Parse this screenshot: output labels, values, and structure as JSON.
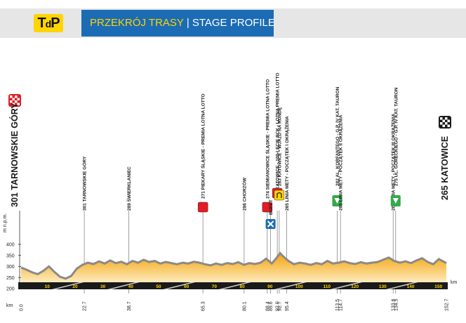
{
  "header": {
    "logo": {
      "t": "T",
      "d": "d",
      "p": "P"
    },
    "title_pl": "PRZEKRÓJ TRASY",
    "title_sep": "|",
    "title_en": "STAGE PROFILE"
  },
  "chart_data": {
    "type": "area",
    "title": "PRZEKRÓJ TRASY | STAGE PROFILE",
    "xlabel": "km",
    "ylabel": "m n.p.m.",
    "xlim": [
      0,
      155
    ],
    "ylim": [
      200,
      400
    ],
    "yticks": [
      200,
      250,
      300,
      350,
      400
    ],
    "grid": false,
    "x": [
      0,
      2,
      4,
      6,
      8,
      10,
      12,
      14,
      16,
      18,
      20,
      22,
      24,
      26,
      28,
      30,
      32,
      34,
      36,
      38,
      40,
      42,
      44,
      46,
      48,
      50,
      52,
      54,
      56,
      58,
      60,
      62,
      64,
      66,
      68,
      70,
      72,
      74,
      76,
      78,
      80,
      82,
      84,
      86,
      88,
      90,
      91,
      92,
      93,
      94,
      96,
      98,
      100,
      102,
      104,
      106,
      108,
      110,
      112,
      114,
      116,
      118,
      120,
      122,
      124,
      126,
      128,
      130,
      132,
      134,
      136,
      138,
      140,
      142,
      144,
      146,
      148,
      150,
      152.7
    ],
    "y": [
      300,
      290,
      278,
      270,
      285,
      305,
      280,
      258,
      250,
      262,
      295,
      312,
      322,
      316,
      328,
      318,
      332,
      320,
      326,
      315,
      330,
      322,
      335,
      325,
      330,
      318,
      325,
      320,
      315,
      322,
      318,
      326,
      322,
      315,
      310,
      318,
      312,
      320,
      316,
      324,
      312,
      320,
      316,
      322,
      340,
      318,
      332,
      348,
      365,
      352,
      330,
      315,
      322,
      318,
      312,
      320,
      315,
      330,
      318,
      322,
      328,
      320,
      316,
      324,
      318,
      322,
      325,
      335,
      345,
      330,
      322,
      328,
      320,
      332,
      342,
      325,
      315,
      338,
      320
    ],
    "waypoints": [
      {
        "km": "0.0",
        "label": "301 TARNOWSKIE GÓRY",
        "icon": "start-flag"
      },
      {
        "km": "22.7",
        "label": "301 TARNOWSKIE GÓRY",
        "icon": ""
      },
      {
        "km": "38.7",
        "label": "289 ŚWIERKLANIEC",
        "icon": ""
      },
      {
        "km": "65.3",
        "label": "271 PIEKARY ŚLĄSKIE - PREMIA LOTNA LOTTO",
        "icon": "sprint"
      },
      {
        "km": "80.1",
        "label": "286 CHORZÓW",
        "icon": ""
      },
      {
        "km": "88.4",
        "label": "274 SIEMIANOWICE ŚLĄSKIE - PREMIA LOTNA LOTTO",
        "icon": "sprint"
      },
      {
        "km": "89.6",
        "label": "BUFET",
        "icon": "feed"
      },
      {
        "km": "92.0",
        "label": "283 KATOWICE - 100-LECIE PCK - LOTNA PREMIA LOTTO",
        "icon": "sprint"
      },
      {
        "km": "92.7",
        "label": "283 KATOWICE - WJAZD NA RUNDĘ",
        "icon": "circuit"
      },
      {
        "km": "95.4",
        "label": "265 LINIA METY - POCZĄTEK I OKRĄŻENIA",
        "icon": ""
      },
      {
        "km": "113.5",
        "label": "282 AL. KORFANTEGO - G.P. IV KAT. TAURON",
        "icon": "kom"
      },
      {
        "km": "114.7",
        "label": "265 LINIA METY - POCZĄTEK II OKRĄŻENIA",
        "icon": ""
      },
      {
        "km": "133.6",
        "label": "265 LINIA METY - POCZĄTEK III OKRĄŻENIA",
        "icon": ""
      },
      {
        "km": "134.5",
        "label": "275 UL. GÓRECKIEGO - G.P. IV KAT. TAURON",
        "icon": "kom"
      },
      {
        "km": "152.7",
        "label": "265 KATOWICE",
        "icon": "finish-flag"
      }
    ],
    "strip_ticks": [
      "10",
      "20",
      "30",
      "40",
      "50",
      "60",
      "70",
      "80",
      "90",
      "100",
      "110",
      "120",
      "130",
      "140",
      "150"
    ],
    "km_unit": "km"
  },
  "colors": {
    "header_blue": "#1b6cb4",
    "title_yellow": "#ffd400",
    "fill_top": "#f4a000",
    "fill_bottom": "#fffbe6",
    "sprint_red": "#e31b23",
    "kom_green": "#35a94b",
    "feed_blue": "#1b6cb4",
    "circuit_yellow": "#ffd400"
  }
}
